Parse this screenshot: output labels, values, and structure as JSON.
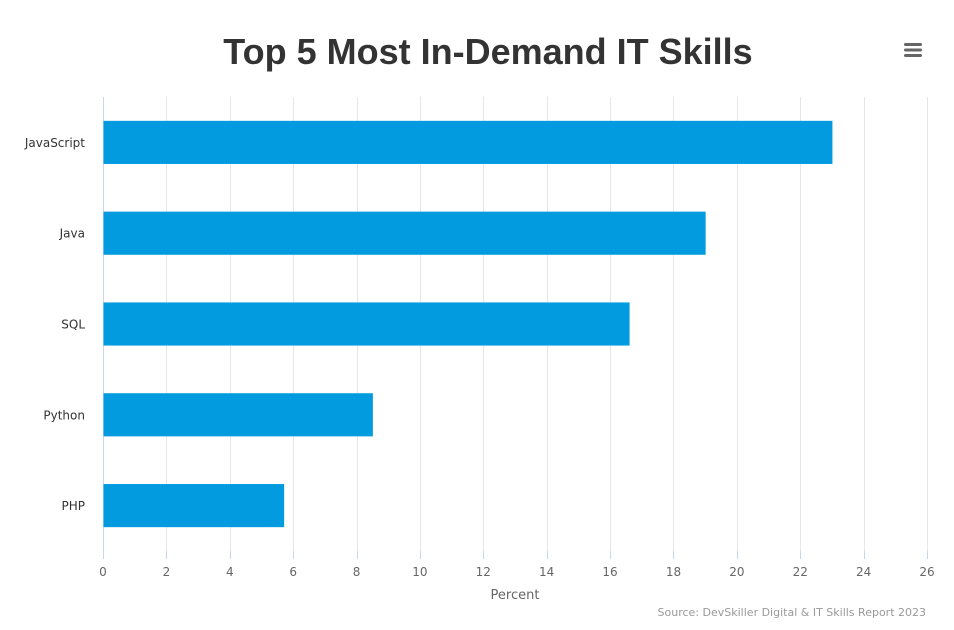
{
  "chart_data": {
    "type": "bar",
    "orientation": "horizontal",
    "title": "Top 5 Most In-Demand IT Skills",
    "categories": [
      "JavaScript",
      "Java",
      "SQL",
      "Python",
      "PHP"
    ],
    "values": [
      23,
      19,
      16.6,
      8.5,
      5.7
    ],
    "xlabel": "Percent",
    "ylabel": "",
    "xlim": [
      0,
      26
    ],
    "x_ticks": [
      0,
      2,
      4,
      6,
      8,
      10,
      12,
      14,
      16,
      18,
      20,
      22,
      24,
      26
    ],
    "grid": true,
    "legend": "none",
    "bar_color": "#039BDF",
    "source": "Source: DevSkiller Digital & IT Skills Report 2023"
  },
  "menu": {
    "icon": "hamburger-menu-icon"
  }
}
